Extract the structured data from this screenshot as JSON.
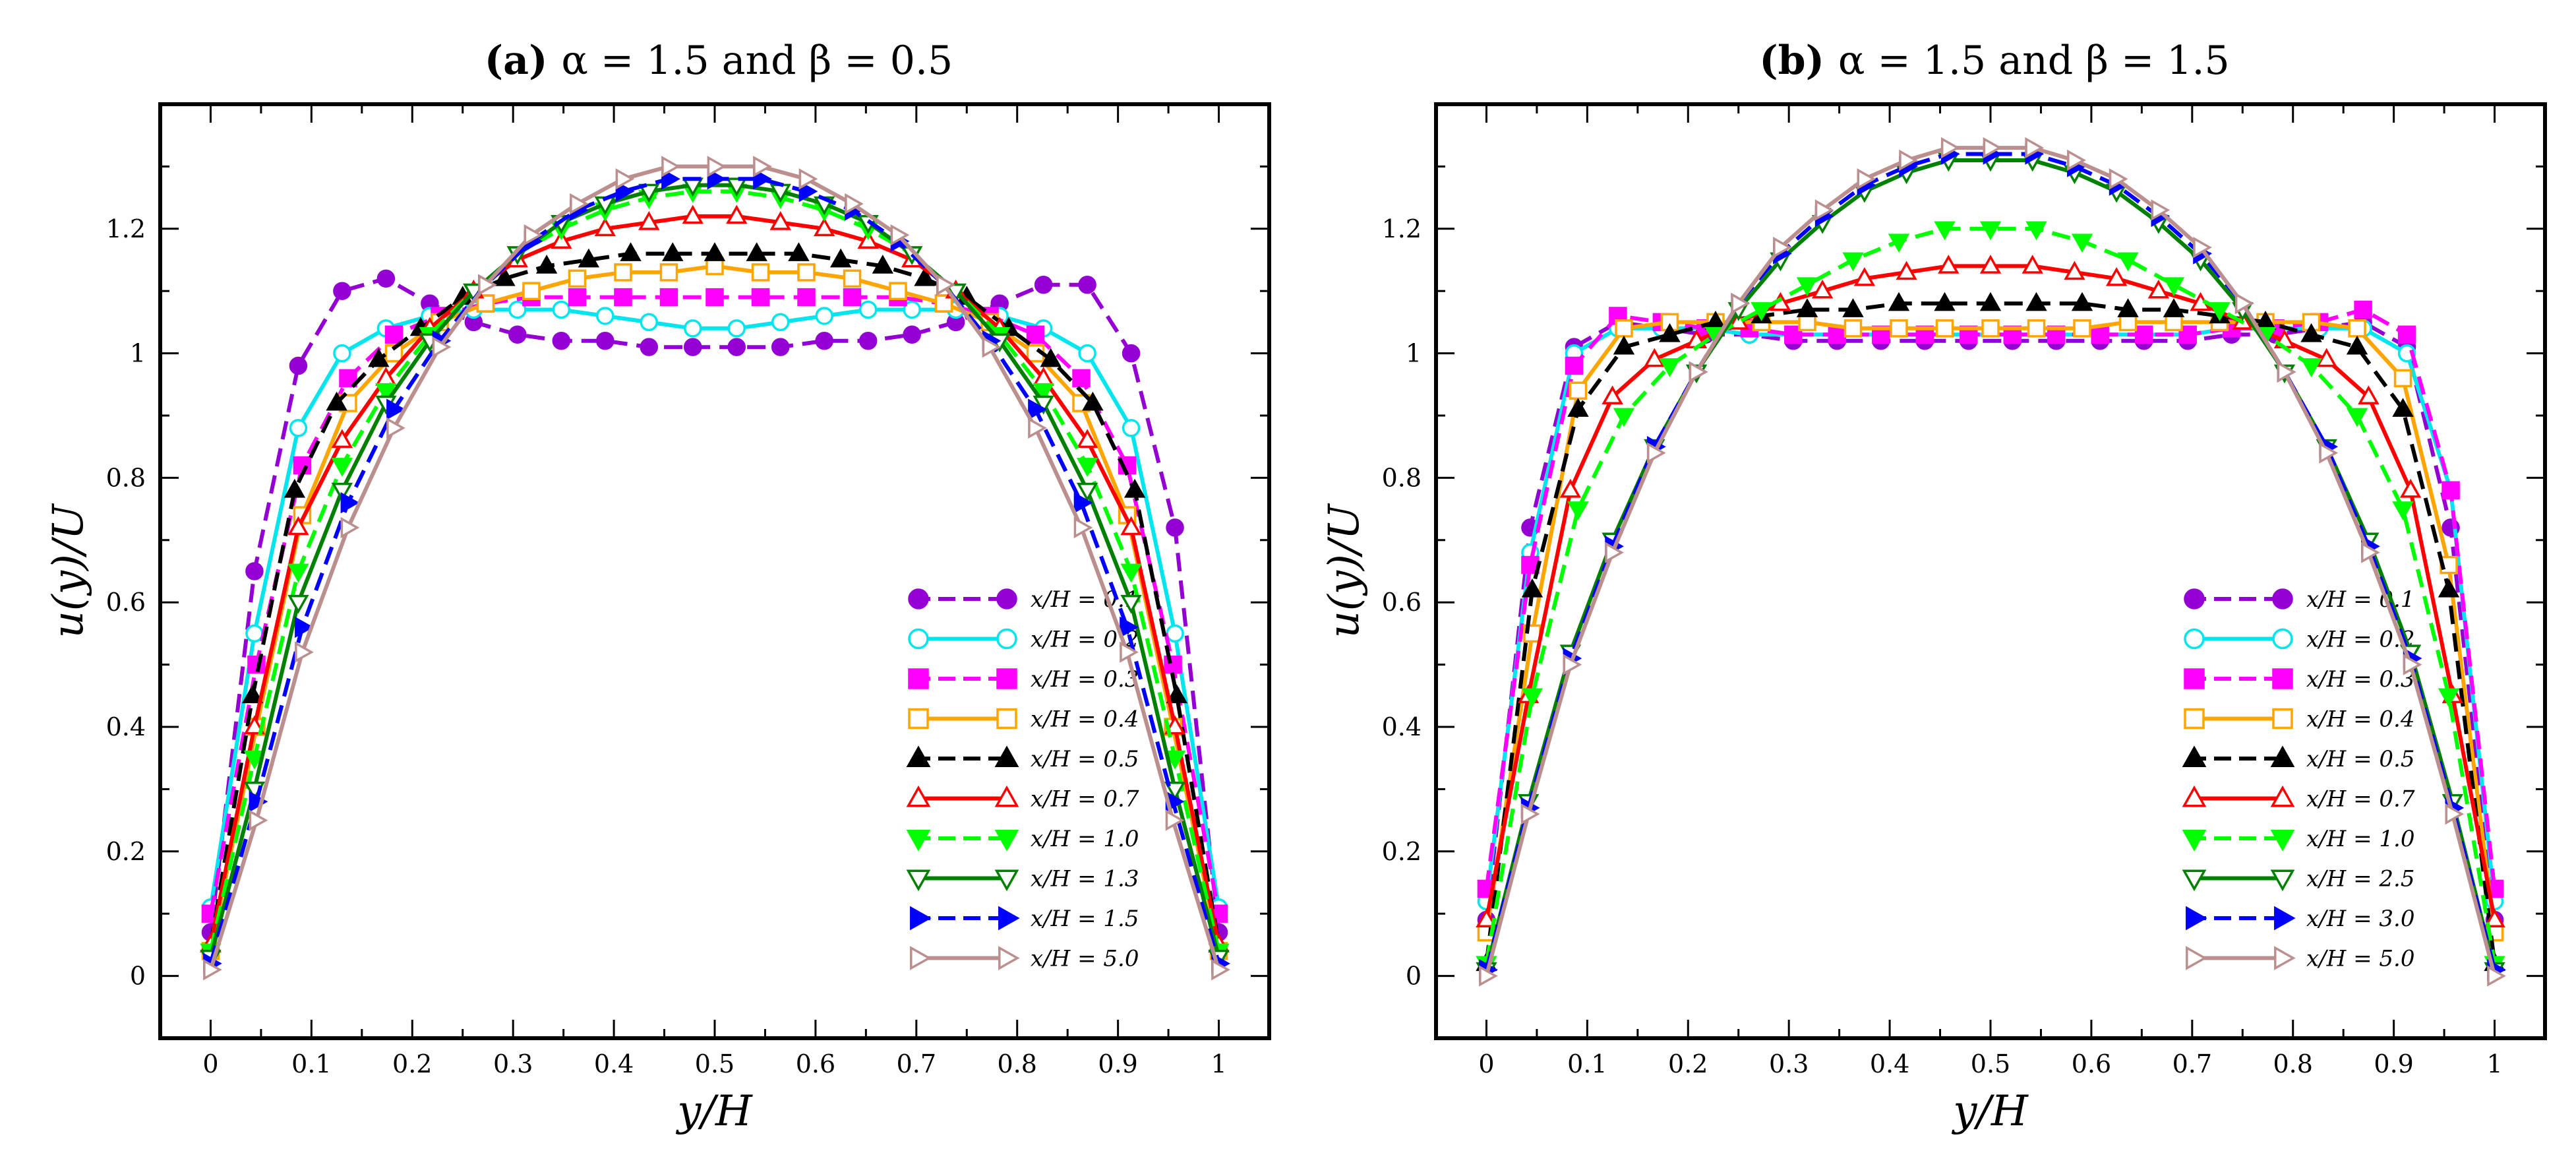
{
  "figure": {
    "colors": {
      "0.1": "#9400D3",
      "0.2": "#00E5EE",
      "0.3": "#FF00FF",
      "0.4": "#FFA500",
      "0.5": "#000000",
      "0.7": "#FF0000",
      "1.0": "#00FF00",
      "1.3": "#008000",
      "2.5": "#008000",
      "1.5": "#0000FF",
      "3.0": "#0000FF",
      "5.0": "#BC8F8F"
    }
  },
  "chart_data": [
    {
      "type": "line",
      "title_prefix": "(a)",
      "title_text": "α = 1.5 and β = 0.5",
      "xlabel": "y/H",
      "ylabel": "u(y)/U",
      "xlim": [
        -0.05,
        1.05
      ],
      "ylim": [
        -0.1,
        1.4
      ],
      "xticks": [
        0,
        0.1,
        0.2,
        0.3,
        0.4,
        0.5,
        0.6,
        0.7,
        0.8,
        0.9,
        1
      ],
      "xtick_labels": [
        "0",
        "0.1",
        "0.2",
        "0.3",
        "0.4",
        "0.5",
        "0.6",
        "0.7",
        "0.8",
        "0.9",
        "1"
      ],
      "yticks": [
        0,
        0.2,
        0.4,
        0.6,
        0.8,
        1,
        1.2
      ],
      "ytick_labels": [
        "0",
        "0.2",
        "0.4",
        "0.6",
        "0.8",
        "1",
        "1.2"
      ],
      "legend_position": "lower-right",
      "series": [
        {
          "name": "x/H = 0.1",
          "key": "0.1",
          "marker": "circle-filled",
          "dash": true,
          "values": [
            0.07,
            0.65,
            0.98,
            1.1,
            1.12,
            1.08,
            1.05,
            1.03,
            1.02,
            1.02,
            1.01,
            1.01,
            1.01,
            1.01,
            1.02,
            1.02,
            1.03,
            1.05,
            1.08,
            1.11,
            1.11,
            1.0,
            0.72,
            0.07
          ]
        },
        {
          "name": "x/H = 0.2",
          "key": "0.2",
          "marker": "circle-open",
          "dash": false,
          "values": [
            0.11,
            0.55,
            0.88,
            1.0,
            1.04,
            1.06,
            1.07,
            1.07,
            1.07,
            1.06,
            1.05,
            1.04,
            1.04,
            1.05,
            1.06,
            1.07,
            1.07,
            1.07,
            1.06,
            1.04,
            1.0,
            0.88,
            0.55,
            0.11
          ]
        },
        {
          "name": "x/H = 0.3",
          "key": "0.3",
          "marker": "square-filled",
          "dash": true,
          "values": [
            0.1,
            0.5,
            0.82,
            0.96,
            1.03,
            1.06,
            1.08,
            1.09,
            1.09,
            1.09,
            1.09,
            1.09,
            1.09,
            1.09,
            1.09,
            1.09,
            1.08,
            1.06,
            1.03,
            0.96,
            0.82,
            0.5,
            0.1
          ]
        },
        {
          "name": "x/H = 0.4",
          "key": "0.4",
          "marker": "square-open",
          "dash": false,
          "values": [
            0.04,
            0.4,
            0.74,
            0.92,
            1.0,
            1.05,
            1.08,
            1.1,
            1.12,
            1.13,
            1.13,
            1.14,
            1.13,
            1.13,
            1.12,
            1.1,
            1.08,
            1.05,
            1.0,
            0.92,
            0.74,
            0.4,
            0.04
          ]
        },
        {
          "name": "x/H = 0.5",
          "key": "0.5",
          "marker": "triangle-up-filled",
          "dash": true,
          "values": [
            0.05,
            0.45,
            0.78,
            0.92,
            0.99,
            1.04,
            1.09,
            1.12,
            1.14,
            1.15,
            1.16,
            1.16,
            1.16,
            1.16,
            1.16,
            1.15,
            1.14,
            1.12,
            1.09,
            1.04,
            0.99,
            0.92,
            0.78,
            0.45,
            0.05
          ]
        },
        {
          "name": "x/H = 0.7",
          "key": "0.7",
          "marker": "triangle-up-open",
          "dash": false,
          "values": [
            0.05,
            0.4,
            0.72,
            0.86,
            0.96,
            1.04,
            1.1,
            1.15,
            1.18,
            1.2,
            1.21,
            1.22,
            1.22,
            1.21,
            1.2,
            1.18,
            1.15,
            1.1,
            1.04,
            0.96,
            0.86,
            0.72,
            0.4,
            0.05
          ]
        },
        {
          "name": "x/H = 1.0",
          "key": "1.0",
          "marker": "triangle-down-filled",
          "dash": true,
          "values": [
            0.04,
            0.35,
            0.65,
            0.82,
            0.94,
            1.03,
            1.1,
            1.16,
            1.2,
            1.23,
            1.25,
            1.26,
            1.26,
            1.25,
            1.23,
            1.2,
            1.16,
            1.1,
            1.03,
            0.94,
            0.82,
            0.65,
            0.35,
            0.04
          ]
        },
        {
          "name": "x/H = 1.3",
          "key": "1.3",
          "marker": "triangle-down-open",
          "dash": false,
          "values": [
            0.03,
            0.3,
            0.6,
            0.78,
            0.92,
            1.02,
            1.1,
            1.16,
            1.21,
            1.24,
            1.26,
            1.27,
            1.27,
            1.26,
            1.24,
            1.21,
            1.16,
            1.1,
            1.02,
            0.92,
            0.78,
            0.6,
            0.3,
            0.03
          ]
        },
        {
          "name": "x/H = 1.5",
          "key": "1.5",
          "marker": "triangle-right-filled",
          "dash": true,
          "values": [
            0.02,
            0.28,
            0.56,
            0.76,
            0.91,
            1.02,
            1.11,
            1.18,
            1.23,
            1.26,
            1.28,
            1.28,
            1.28,
            1.26,
            1.23,
            1.18,
            1.11,
            1.02,
            0.91,
            0.76,
            0.56,
            0.28,
            0.02
          ]
        },
        {
          "name": "x/H = 5.0",
          "key": "5.0",
          "marker": "triangle-right-open",
          "dash": false,
          "values": [
            0.01,
            0.25,
            0.52,
            0.72,
            0.88,
            1.01,
            1.11,
            1.19,
            1.24,
            1.28,
            1.3,
            1.3,
            1.3,
            1.28,
            1.24,
            1.19,
            1.11,
            1.01,
            0.88,
            0.72,
            0.52,
            0.25,
            0.01
          ]
        }
      ]
    },
    {
      "type": "line",
      "title_prefix": "(b)",
      "title_text": "α = 1.5 and β = 1.5",
      "xlabel": "y/H",
      "ylabel": "u(y)/U",
      "xlim": [
        -0.05,
        1.05
      ],
      "ylim": [
        -0.1,
        1.4
      ],
      "xticks": [
        0,
        0.1,
        0.2,
        0.3,
        0.4,
        0.5,
        0.6,
        0.7,
        0.8,
        0.9,
        1
      ],
      "xtick_labels": [
        "0",
        "0.1",
        "0.2",
        "0.3",
        "0.4",
        "0.5",
        "0.6",
        "0.7",
        "0.8",
        "0.9",
        "1"
      ],
      "yticks": [
        0,
        0.2,
        0.4,
        0.6,
        0.8,
        1,
        1.2
      ],
      "ytick_labels": [
        "0",
        "0.2",
        "0.4",
        "0.6",
        "0.8",
        "1",
        "1.2"
      ],
      "legend_position": "lower-right",
      "series": [
        {
          "name": "x/H = 0.1",
          "key": "0.1",
          "marker": "circle-filled",
          "dash": true,
          "values": [
            0.09,
            0.72,
            1.01,
            1.05,
            1.04,
            1.03,
            1.03,
            1.02,
            1.02,
            1.02,
            1.02,
            1.02,
            1.02,
            1.02,
            1.02,
            1.02,
            1.02,
            1.03,
            1.03,
            1.04,
            1.05,
            1.01,
            0.72,
            0.09
          ]
        },
        {
          "name": "x/H = 0.2",
          "key": "0.2",
          "marker": "circle-open",
          "dash": false,
          "values": [
            0.12,
            0.68,
            1.0,
            1.04,
            1.04,
            1.04,
            1.03,
            1.03,
            1.03,
            1.03,
            1.03,
            1.03,
            1.03,
            1.03,
            1.03,
            1.03,
            1.03,
            1.04,
            1.04,
            1.04,
            1.04,
            1.0,
            0.78,
            0.12
          ]
        },
        {
          "name": "x/H = 0.3",
          "key": "0.3",
          "marker": "square-filled",
          "dash": true,
          "values": [
            0.14,
            0.66,
            0.98,
            1.06,
            1.05,
            1.04,
            1.04,
            1.03,
            1.03,
            1.03,
            1.03,
            1.03,
            1.03,
            1.03,
            1.03,
            1.03,
            1.03,
            1.04,
            1.04,
            1.05,
            1.07,
            1.03,
            0.78,
            0.14
          ]
        },
        {
          "name": "x/H = 0.4",
          "key": "0.4",
          "marker": "square-open",
          "dash": false,
          "values": [
            0.07,
            0.55,
            0.94,
            1.04,
            1.05,
            1.05,
            1.05,
            1.05,
            1.04,
            1.04,
            1.04,
            1.04,
            1.04,
            1.04,
            1.05,
            1.05,
            1.05,
            1.05,
            1.05,
            1.04,
            0.96,
            0.66,
            0.07
          ]
        },
        {
          "name": "x/H = 0.5",
          "key": "0.5",
          "marker": "triangle-up-filled",
          "dash": true,
          "values": [
            0.02,
            0.62,
            0.91,
            1.01,
            1.03,
            1.05,
            1.06,
            1.07,
            1.07,
            1.08,
            1.08,
            1.08,
            1.08,
            1.08,
            1.07,
            1.07,
            1.06,
            1.05,
            1.03,
            1.01,
            0.91,
            0.62,
            0.02
          ]
        },
        {
          "name": "x/H = 0.7",
          "key": "0.7",
          "marker": "triangle-up-open",
          "dash": false,
          "values": [
            0.09,
            0.45,
            0.78,
            0.93,
            0.99,
            1.02,
            1.05,
            1.08,
            1.1,
            1.12,
            1.13,
            1.14,
            1.14,
            1.14,
            1.13,
            1.12,
            1.1,
            1.08,
            1.05,
            1.02,
            0.99,
            0.93,
            0.78,
            0.45,
            0.09
          ]
        },
        {
          "name": "x/H = 1.0",
          "key": "1.0",
          "marker": "triangle-down-filled",
          "dash": true,
          "values": [
            0.02,
            0.45,
            0.75,
            0.9,
            0.98,
            1.03,
            1.07,
            1.11,
            1.15,
            1.18,
            1.2,
            1.2,
            1.2,
            1.18,
            1.15,
            1.11,
            1.07,
            1.03,
            0.98,
            0.9,
            0.75,
            0.45,
            0.02
          ]
        },
        {
          "name": "x/H = 2.5",
          "key": "2.5",
          "marker": "triangle-down-open",
          "dash": false,
          "values": [
            0.01,
            0.28,
            0.52,
            0.7,
            0.85,
            0.97,
            1.07,
            1.15,
            1.21,
            1.26,
            1.29,
            1.31,
            1.31,
            1.31,
            1.29,
            1.26,
            1.21,
            1.15,
            1.07,
            0.97,
            0.85,
            0.7,
            0.52,
            0.28,
            0.01
          ]
        },
        {
          "name": "x/H = 3.0",
          "key": "3.0",
          "marker": "triangle-right-filled",
          "dash": true,
          "values": [
            0.01,
            0.27,
            0.51,
            0.69,
            0.85,
            0.97,
            1.08,
            1.16,
            1.22,
            1.27,
            1.3,
            1.32,
            1.32,
            1.32,
            1.3,
            1.27,
            1.22,
            1.16,
            1.08,
            0.97,
            0.85,
            0.69,
            0.51,
            0.27,
            0.01
          ]
        },
        {
          "name": "x/H = 5.0",
          "key": "5.0",
          "marker": "triangle-right-open",
          "dash": false,
          "values": [
            0.0,
            0.26,
            0.5,
            0.68,
            0.84,
            0.97,
            1.08,
            1.17,
            1.23,
            1.28,
            1.31,
            1.33,
            1.33,
            1.33,
            1.31,
            1.28,
            1.23,
            1.17,
            1.08,
            0.97,
            0.84,
            0.68,
            0.5,
            0.26,
            0.0
          ]
        }
      ]
    }
  ]
}
